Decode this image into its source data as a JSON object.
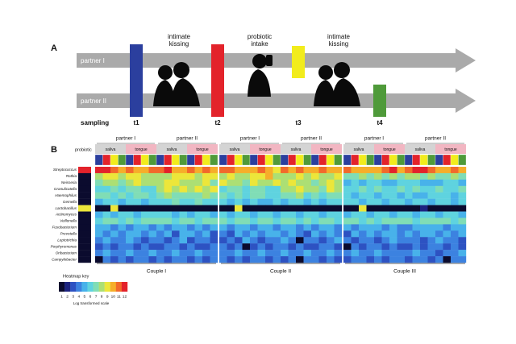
{
  "panel_a": {
    "label": "A",
    "partners": [
      "partner I",
      "partner II"
    ],
    "events": [
      [
        "intimate",
        "kissing"
      ],
      [
        "probiotic",
        "intake"
      ],
      [
        "intimate",
        "kissing"
      ]
    ],
    "sampling_label": "sampling",
    "timepoints": [
      {
        "label": "t1",
        "color": "#2b3f9e"
      },
      {
        "label": "t2",
        "color": "#e3232b"
      },
      {
        "label": "t3",
        "color": "#f2ec1c"
      },
      {
        "label": "t4",
        "color": "#4f9a3a"
      }
    ]
  },
  "panel_b": {
    "label": "B",
    "probiotic_label": "probiotic",
    "couples": [
      "Couple I",
      "Couple II",
      "Couple III"
    ],
    "partners": [
      "partner I",
      "partner II"
    ],
    "sites": [
      "saliva",
      "tongue"
    ],
    "genera": [
      "Streptococcus",
      "Rothia",
      "Neisseria",
      "Granulicatella",
      "Haemophilus",
      "Gemella",
      "Lactobacillus",
      "Actinomyces",
      "Veillonella",
      "Fusobacterium",
      "Prevotella",
      "Leptotrichia",
      "Porphyromonas",
      "Oribacterium",
      "Campylobacter"
    ],
    "probiotic_values": [
      12,
      1,
      1,
      1,
      1,
      1,
      9,
      1,
      1,
      1,
      1,
      1,
      1,
      1,
      1
    ],
    "rows": [
      [
        12,
        12,
        11,
        10,
        11,
        10,
        10,
        11,
        11,
        12,
        10,
        10,
        11,
        10,
        11,
        10,
        11,
        11,
        10,
        10,
        10,
        11,
        10,
        9,
        11,
        10,
        11,
        10,
        10,
        11,
        10,
        10,
        11,
        10,
        10,
        10,
        10,
        11,
        12,
        10,
        11,
        12,
        12,
        11,
        10,
        10,
        11,
        10
      ],
      [
        8,
        9,
        9,
        8,
        9,
        9,
        8,
        8,
        8,
        8,
        9,
        9,
        9,
        8,
        9,
        9,
        8,
        9,
        8,
        8,
        9,
        9,
        10,
        8,
        8,
        8,
        9,
        8,
        9,
        8,
        8,
        9,
        7,
        7,
        8,
        7,
        8,
        7,
        8,
        7,
        8,
        8,
        7,
        8,
        7,
        7,
        8,
        7
      ],
      [
        7,
        8,
        8,
        7,
        8,
        9,
        8,
        8,
        8,
        9,
        9,
        8,
        8,
        8,
        9,
        7,
        9,
        8,
        8,
        7,
        9,
        8,
        8,
        9,
        8,
        9,
        8,
        8,
        7,
        8,
        9,
        8,
        5,
        6,
        5,
        6,
        6,
        5,
        5,
        6,
        6,
        6,
        5,
        5,
        5,
        6,
        6,
        5
      ],
      [
        6,
        6,
        7,
        6,
        7,
        7,
        6,
        6,
        8,
        9,
        8,
        9,
        8,
        9,
        8,
        9,
        6,
        7,
        7,
        6,
        7,
        7,
        6,
        6,
        8,
        8,
        9,
        8,
        8,
        7,
        9,
        8,
        6,
        6,
        7,
        6,
        7,
        6,
        6,
        7,
        6,
        7,
        6,
        6,
        7,
        6,
        6,
        7
      ],
      [
        7,
        7,
        6,
        7,
        6,
        7,
        7,
        6,
        7,
        8,
        7,
        7,
        7,
        7,
        8,
        7,
        7,
        6,
        7,
        6,
        7,
        7,
        6,
        6,
        7,
        7,
        8,
        6,
        7,
        6,
        7,
        7,
        6,
        5,
        6,
        6,
        5,
        6,
        6,
        5,
        6,
        5,
        5,
        6,
        6,
        6,
        5,
        6
      ],
      [
        5,
        6,
        6,
        5,
        6,
        6,
        5,
        6,
        6,
        6,
        7,
        6,
        6,
        7,
        6,
        6,
        6,
        5,
        6,
        5,
        6,
        5,
        5,
        6,
        5,
        6,
        6,
        5,
        6,
        5,
        6,
        6,
        6,
        6,
        5,
        6,
        6,
        5,
        6,
        6,
        5,
        6,
        6,
        5,
        6,
        6,
        5,
        6
      ],
      [
        1,
        1,
        9,
        1,
        1,
        1,
        1,
        1,
        1,
        1,
        1,
        1,
        1,
        1,
        1,
        1,
        1,
        1,
        9,
        1,
        1,
        1,
        1,
        1,
        1,
        1,
        1,
        1,
        1,
        1,
        1,
        1,
        1,
        1,
        9,
        1,
        1,
        1,
        1,
        1,
        1,
        1,
        2,
        1,
        1,
        1,
        1,
        1
      ],
      [
        5,
        6,
        5,
        6,
        6,
        5,
        6,
        6,
        6,
        6,
        5,
        6,
        5,
        6,
        6,
        5,
        6,
        5,
        6,
        6,
        5,
        6,
        6,
        5,
        6,
        6,
        5,
        6,
        6,
        5,
        6,
        6,
        5,
        6,
        6,
        5,
        6,
        6,
        5,
        6,
        6,
        5,
        6,
        6,
        5,
        6,
        6,
        5
      ],
      [
        6,
        7,
        7,
        6,
        7,
        6,
        7,
        7,
        7,
        7,
        6,
        7,
        7,
        6,
        7,
        7,
        7,
        6,
        7,
        7,
        6,
        7,
        7,
        6,
        7,
        7,
        6,
        7,
        6,
        7,
        7,
        6,
        7,
        7,
        6,
        7,
        6,
        7,
        7,
        7,
        7,
        6,
        7,
        7,
        7,
        7,
        6,
        7
      ],
      [
        5,
        5,
        4,
        5,
        4,
        5,
        5,
        4,
        5,
        4,
        5,
        5,
        4,
        5,
        4,
        5,
        5,
        4,
        5,
        5,
        4,
        5,
        5,
        4,
        5,
        5,
        4,
        5,
        4,
        5,
        5,
        4,
        5,
        4,
        5,
        5,
        5,
        4,
        5,
        4,
        4,
        5,
        5,
        5,
        5,
        4,
        5,
        5
      ],
      [
        5,
        4,
        5,
        4,
        5,
        5,
        4,
        5,
        4,
        5,
        3,
        5,
        5,
        4,
        5,
        3,
        4,
        3,
        5,
        4,
        5,
        4,
        5,
        5,
        4,
        5,
        4,
        3,
        5,
        4,
        5,
        4,
        3,
        5,
        4,
        5,
        4,
        5,
        5,
        4,
        5,
        4,
        5,
        5,
        4,
        5,
        4,
        5
      ],
      [
        4,
        5,
        4,
        4,
        5,
        4,
        3,
        4,
        4,
        3,
        4,
        5,
        3,
        4,
        4,
        3,
        3,
        4,
        3,
        5,
        4,
        3,
        4,
        4,
        5,
        4,
        1,
        4,
        4,
        3,
        4,
        5,
        4,
        3,
        4,
        4,
        3,
        4,
        5,
        4,
        4,
        4,
        3,
        4,
        5,
        4,
        4,
        3
      ],
      [
        3,
        4,
        3,
        4,
        4,
        3,
        4,
        3,
        3,
        4,
        4,
        3,
        4,
        3,
        3,
        4,
        4,
        3,
        4,
        1,
        3,
        4,
        3,
        4,
        4,
        3,
        4,
        3,
        3,
        4,
        4,
        3,
        1,
        4,
        3,
        4,
        4,
        3,
        4,
        3,
        3,
        4,
        3,
        4,
        4,
        3,
        4,
        3
      ],
      [
        4,
        5,
        4,
        4,
        5,
        4,
        4,
        5,
        4,
        4,
        5,
        4,
        4,
        5,
        4,
        4,
        4,
        4,
        5,
        4,
        4,
        5,
        4,
        4,
        5,
        4,
        4,
        5,
        4,
        4,
        5,
        4,
        4,
        5,
        4,
        4,
        5,
        4,
        4,
        4,
        4,
        5,
        4,
        4,
        3,
        4,
        4,
        5
      ],
      [
        1,
        4,
        3,
        4,
        3,
        4,
        4,
        3,
        4,
        3,
        4,
        4,
        3,
        4,
        3,
        4,
        4,
        3,
        4,
        3,
        4,
        4,
        3,
        4,
        3,
        4,
        1,
        4,
        4,
        3,
        4,
        3,
        3,
        4,
        4,
        3,
        4,
        3,
        4,
        4,
        3,
        4,
        4,
        3,
        4,
        1,
        4,
        4
      ]
    ],
    "key": {
      "title": "Heatmap key",
      "levels": [
        1,
        2,
        3,
        4,
        5,
        6,
        7,
        8,
        9,
        10,
        11,
        12
      ],
      "colors": [
        "#0b0b2e",
        "#1c2380",
        "#2d52c2",
        "#3c82e0",
        "#48b2ea",
        "#5fd3df",
        "#80ddb6",
        "#acdf74",
        "#ece63a",
        "#f6ae2a",
        "#f2692b",
        "#e3222b"
      ],
      "caption": "Log transformed scale"
    }
  }
}
